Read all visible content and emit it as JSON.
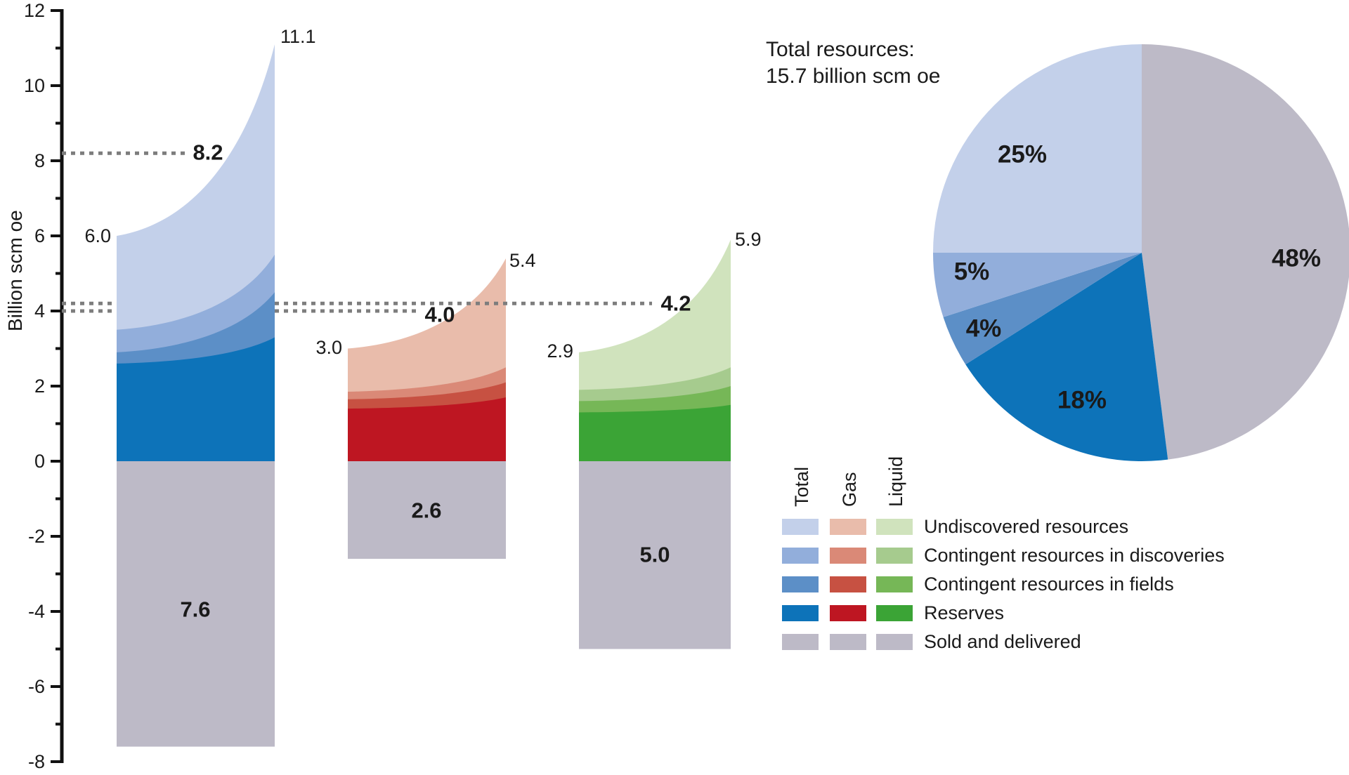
{
  "axis": {
    "label": "Billion scm oe",
    "ylim": [
      -8,
      12
    ],
    "major_ticks": [
      {
        "v": 12,
        "label": "12"
      },
      {
        "v": 10,
        "label": "10"
      },
      {
        "v": 8,
        "label": "8"
      },
      {
        "v": 6,
        "label": "6"
      },
      {
        "v": 4,
        "label": "4"
      },
      {
        "v": 2,
        "label": "2"
      },
      {
        "v": 0,
        "label": "0"
      },
      {
        "v": -2,
        "label": "-2"
      },
      {
        "v": -4,
        "label": "-4"
      },
      {
        "v": -6,
        "label": "-6"
      },
      {
        "v": -8,
        "label": "-8"
      }
    ],
    "minor_ticks": [
      11,
      9,
      7,
      5,
      3,
      1,
      -1,
      -3,
      -5,
      -7
    ]
  },
  "colors": {
    "total": [
      "#c3d0ea",
      "#92aedb",
      "#5c8fc7",
      "#0d73b9"
    ],
    "gas": [
      "#e9bcab",
      "#da8977",
      "#c75142",
      "#be1622"
    ],
    "liquid": [
      "#d0e3bd",
      "#a6cb8e",
      "#76b757",
      "#3ba436"
    ],
    "sold": "#bdbac7",
    "marker_line": "#7d7d7d",
    "text": "#1a1a1a"
  },
  "chart_data": {
    "type": "area",
    "ylabel": "Billion scm oe",
    "ylim": [
      -8,
      12
    ],
    "unit": "billion scm oe",
    "groups": [
      {
        "key": "total",
        "name": "Total",
        "total_start": 6.0,
        "total_end": 11.1,
        "start_label": "6.0",
        "end_label": "11.1",
        "marker": {
          "value": 8.2,
          "label": "8.2"
        },
        "sold_and_delivered": {
          "value": 7.6,
          "label": "7.6"
        },
        "cumulative_layers": [
          {
            "category": "Undiscovered resources",
            "start": 6.0,
            "end": 11.1
          },
          {
            "category": "Contingent resources in discoveries",
            "start": 3.5,
            "end": 5.5
          },
          {
            "category": "Contingent resources in fields",
            "start": 2.9,
            "end": 4.5
          },
          {
            "category": "Reserves",
            "start": 2.6,
            "end": 3.3
          }
        ]
      },
      {
        "key": "gas",
        "name": "Gas",
        "total_start": 3.0,
        "total_end": 5.4,
        "start_label": "3.0",
        "end_label": "5.4",
        "marker": {
          "value": 4.0,
          "label": "4.0"
        },
        "sold_and_delivered": {
          "value": 2.6,
          "label": "2.6"
        },
        "cumulative_layers": [
          {
            "category": "Undiscovered resources",
            "start": 3.0,
            "end": 5.4
          },
          {
            "category": "Contingent resources in discoveries",
            "start": 1.85,
            "end": 2.5
          },
          {
            "category": "Contingent resources in fields",
            "start": 1.65,
            "end": 2.1
          },
          {
            "category": "Reserves",
            "start": 1.4,
            "end": 1.7
          }
        ]
      },
      {
        "key": "liquid",
        "name": "Liquid",
        "total_start": 2.9,
        "total_end": 5.9,
        "start_label": "2.9",
        "end_label": "5.9",
        "marker": {
          "value": 4.2,
          "label": "4.2"
        },
        "sold_and_delivered": {
          "value": 5.0,
          "label": "5.0"
        },
        "cumulative_layers": [
          {
            "category": "Undiscovered resources",
            "start": 2.9,
            "end": 5.9
          },
          {
            "category": "Contingent resources in discoveries",
            "start": 1.9,
            "end": 2.5
          },
          {
            "category": "Contingent resources in fields",
            "start": 1.6,
            "end": 2.0
          },
          {
            "category": "Reserves",
            "start": 1.3,
            "end": 1.5
          }
        ]
      }
    ],
    "pie": {
      "total_label_lines": [
        "Total resources:",
        "15.7 billion scm oe"
      ],
      "start": "top",
      "direction": "clockwise",
      "slices": [
        {
          "label": "48%",
          "value": 48,
          "category": "Sold and delivered",
          "color": "#bdbac7"
        },
        {
          "label": "18%",
          "value": 18,
          "category": "Reserves",
          "color": "#0d73b9"
        },
        {
          "label": "4%",
          "value": 4,
          "category": "Contingent resources in fields",
          "color": "#5c8fc7"
        },
        {
          "label": "5%",
          "value": 5,
          "category": "Contingent resources in discoveries",
          "color": "#92aedb"
        },
        {
          "label": "25%",
          "value": 25,
          "category": "Undiscovered resources",
          "color": "#c3d0ea"
        }
      ]
    }
  },
  "legend": {
    "columns": [
      "Total",
      "Gas",
      "Liquid"
    ],
    "rows": [
      {
        "label": "Undiscovered resources",
        "colors": [
          "#c3d0ea",
          "#e9bcab",
          "#d0e3bd"
        ]
      },
      {
        "label": "Contingent resources in discoveries",
        "colors": [
          "#92aedb",
          "#da8977",
          "#a6cb8e"
        ]
      },
      {
        "label": "Contingent resources in fields",
        "colors": [
          "#5c8fc7",
          "#c75142",
          "#76b757"
        ]
      },
      {
        "label": "Reserves",
        "colors": [
          "#0d73b9",
          "#be1622",
          "#3ba436"
        ]
      },
      {
        "label": "Sold and delivered",
        "colors": [
          "#bdbac7",
          "#bdbac7",
          "#bdbac7"
        ]
      }
    ]
  }
}
